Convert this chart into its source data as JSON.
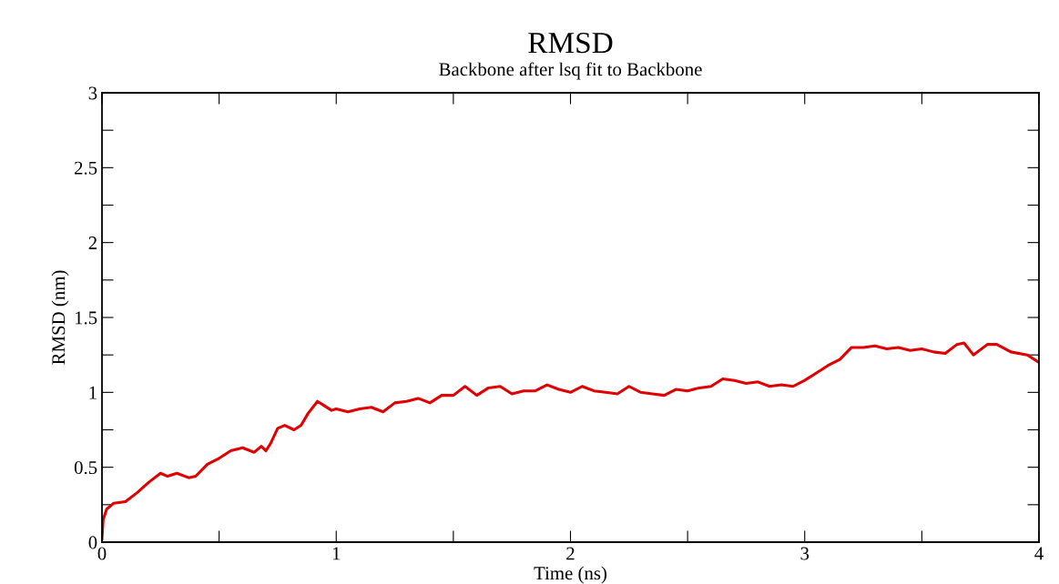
{
  "chart_data": {
    "type": "line",
    "title": "RMSD",
    "subtitle": "Backbone after lsq fit to Backbone",
    "xlabel": "Time (ns)",
    "ylabel": "RMSD (nm)",
    "xlim": [
      0,
      4
    ],
    "ylim": [
      0,
      3
    ],
    "xticks": [
      0,
      {
        "value": 0.5,
        "label": null
      },
      1,
      {
        "value": 1.5,
        "label": null
      },
      2,
      {
        "value": 2.5,
        "label": null
      },
      3,
      {
        "value": 3.5,
        "label": null
      },
      4
    ],
    "yticks": [
      0,
      {
        "value": 0.25,
        "label": null
      },
      0.5,
      {
        "value": 0.75,
        "label": null
      },
      1,
      {
        "value": 1.25,
        "label": null
      },
      1.5,
      {
        "value": 1.75,
        "label": null
      },
      2,
      {
        "value": 2.25,
        "label": null
      },
      2.5,
      {
        "value": 2.75,
        "label": null
      },
      3
    ],
    "grid": false,
    "legend": false,
    "marker": "none",
    "line_style": "solid",
    "series": [
      {
        "color": "#e00000",
        "x": [
          0,
          0.005,
          0.02,
          0.05,
          0.1,
          0.15,
          0.2,
          0.25,
          0.28,
          0.32,
          0.37,
          0.4,
          0.45,
          0.5,
          0.55,
          0.6,
          0.65,
          0.68,
          0.7,
          0.72,
          0.75,
          0.78,
          0.82,
          0.85,
          0.88,
          0.92,
          0.95,
          0.98,
          1.0,
          1.05,
          1.1,
          1.15,
          1.2,
          1.25,
          1.3,
          1.35,
          1.4,
          1.45,
          1.5,
          1.55,
          1.6,
          1.65,
          1.7,
          1.75,
          1.8,
          1.85,
          1.9,
          1.95,
          2.0,
          2.05,
          2.1,
          2.15,
          2.2,
          2.25,
          2.3,
          2.35,
          2.4,
          2.45,
          2.5,
          2.55,
          2.6,
          2.65,
          2.7,
          2.75,
          2.8,
          2.85,
          2.9,
          2.95,
          3.0,
          3.05,
          3.1,
          3.15,
          3.2,
          3.25,
          3.3,
          3.35,
          3.4,
          3.45,
          3.5,
          3.55,
          3.6,
          3.65,
          3.68,
          3.72,
          3.78,
          3.82,
          3.88,
          3.95,
          4.0
        ],
        "values": [
          0.02,
          0.15,
          0.22,
          0.26,
          0.27,
          0.33,
          0.4,
          0.46,
          0.44,
          0.46,
          0.43,
          0.44,
          0.52,
          0.56,
          0.61,
          0.63,
          0.6,
          0.64,
          0.61,
          0.66,
          0.76,
          0.78,
          0.75,
          0.78,
          0.86,
          0.94,
          0.91,
          0.88,
          0.89,
          0.87,
          0.89,
          0.9,
          0.87,
          0.93,
          0.94,
          0.96,
          0.93,
          0.98,
          0.98,
          1.04,
          0.98,
          1.03,
          1.04,
          0.99,
          1.01,
          1.01,
          1.05,
          1.02,
          1.0,
          1.04,
          1.01,
          1.0,
          0.99,
          1.04,
          1.0,
          0.99,
          0.98,
          1.02,
          1.01,
          1.03,
          1.04,
          1.09,
          1.08,
          1.06,
          1.07,
          1.04,
          1.05,
          1.04,
          1.08,
          1.13,
          1.18,
          1.22,
          1.3,
          1.3,
          1.31,
          1.29,
          1.3,
          1.28,
          1.29,
          1.27,
          1.26,
          1.32,
          1.33,
          1.25,
          1.32,
          1.32,
          1.27,
          1.25,
          1.2
        ]
      }
    ]
  }
}
